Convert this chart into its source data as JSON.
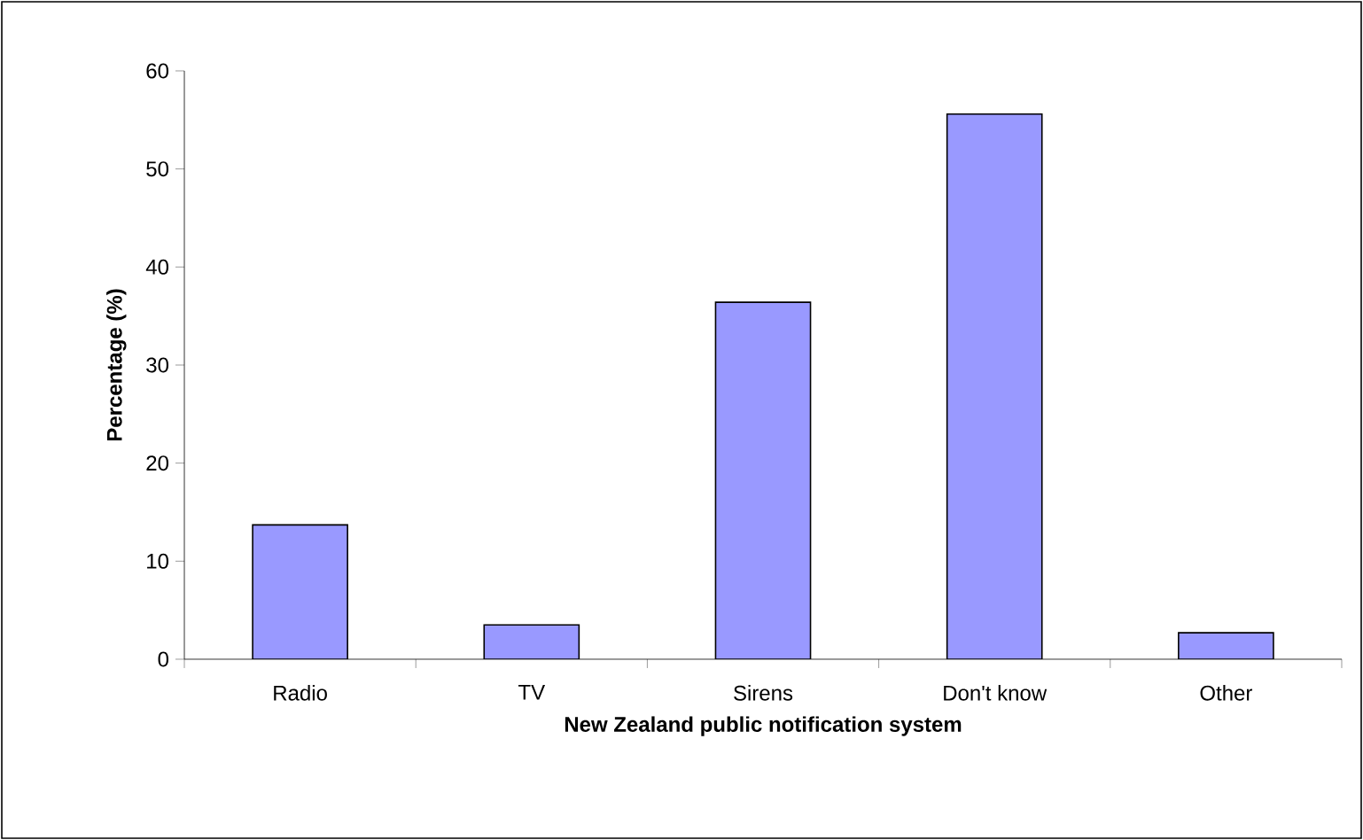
{
  "chart_data": {
    "type": "bar",
    "xlabel": "New Zealand public notification system",
    "ylabel": "Percentage (%)",
    "categories": [
      "Radio",
      "TV",
      "Sirens",
      "Don't know",
      "Other"
    ],
    "values": [
      13.7,
      3.5,
      36.4,
      55.6,
      2.7
    ],
    "color": "#9999ff",
    "ylim": [
      0,
      60
    ],
    "yticks": [
      0,
      10,
      20,
      30,
      40,
      50,
      60
    ],
    "grid": false
  }
}
